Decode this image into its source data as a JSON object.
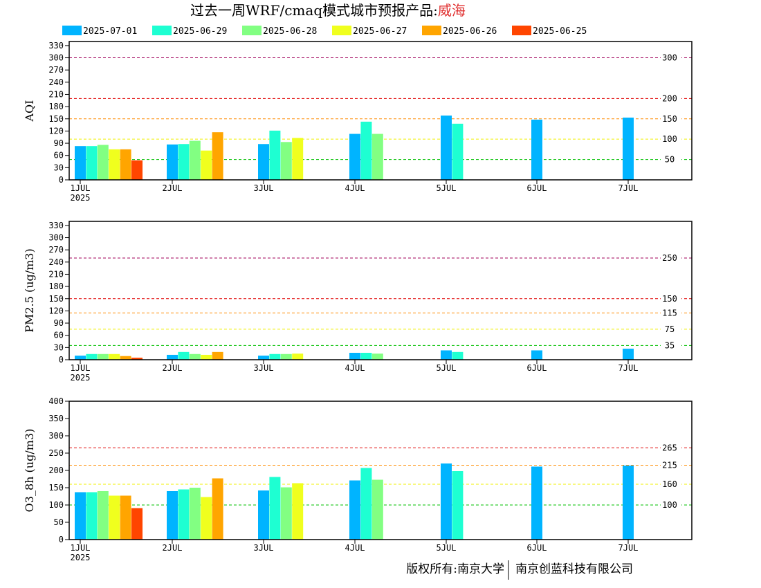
{
  "title": {
    "main": "过去一周WRF/cmaq模式城市预报产品:",
    "city": "威海",
    "city_color": "#e03030"
  },
  "legend": [
    {
      "label": "2025-07-01",
      "color": "#00b4ff"
    },
    {
      "label": "2025-06-29",
      "color": "#1effd2"
    },
    {
      "label": "2025-06-28",
      "color": "#82ff82"
    },
    {
      "label": "2025-06-27",
      "color": "#f0ff1e"
    },
    {
      "label": "2025-06-26",
      "color": "#ffa500"
    },
    {
      "label": "2025-06-25",
      "color": "#ff4500"
    }
  ],
  "footer": {
    "left": "版权所有:南京大学",
    "right": "南京创蓝科技有限公司"
  },
  "chart_data": [
    {
      "type": "bar",
      "ylabel": "AQI",
      "ylim": [
        0,
        340
      ],
      "yticks": [
        0,
        30,
        60,
        90,
        120,
        150,
        180,
        210,
        240,
        270,
        300,
        330
      ],
      "x_ticks": [
        "1JUL",
        "2JUL",
        "3JUL",
        "4JUL",
        "5JUL",
        "6JUL",
        "7JUL"
      ],
      "x_year": "2025",
      "thresholds": [
        {
          "value": 50,
          "label": "50",
          "color": "#00c000"
        },
        {
          "value": 100,
          "label": "100",
          "color": "#f0f000"
        },
        {
          "value": 150,
          "label": "150",
          "color": "#ff8c00"
        },
        {
          "value": 200,
          "label": "200",
          "color": "#e00000"
        },
        {
          "value": 300,
          "label": "300",
          "color": "#a0005a"
        }
      ],
      "days": [
        {
          "day": "1JUL",
          "values": [
            83,
            83,
            86,
            75,
            75,
            48
          ]
        },
        {
          "day": "2JUL",
          "values": [
            87,
            88,
            96,
            72,
            117,
            null
          ]
        },
        {
          "day": "3JUL",
          "values": [
            88,
            121,
            93,
            103,
            null,
            null
          ]
        },
        {
          "day": "4JUL",
          "values": [
            113,
            143,
            113,
            null,
            null,
            null
          ]
        },
        {
          "day": "5JUL",
          "values": [
            158,
            138,
            null,
            null,
            null,
            null
          ]
        },
        {
          "day": "6JUL",
          "values": [
            148,
            null,
            null,
            null,
            null,
            null
          ]
        },
        {
          "day": "7JUL",
          "values": [
            153,
            null,
            null,
            null,
            null,
            null
          ]
        }
      ]
    },
    {
      "type": "bar",
      "ylabel": "PM2.5 (ug/m3)",
      "ylim": [
        0,
        340
      ],
      "yticks": [
        0,
        30,
        60,
        90,
        120,
        150,
        180,
        210,
        240,
        270,
        300,
        330
      ],
      "x_ticks": [
        "1JUL",
        "2JUL",
        "3JUL",
        "4JUL",
        "5JUL",
        "6JUL",
        "7JUL"
      ],
      "x_year": "2025",
      "thresholds": [
        {
          "value": 35,
          "label": "35",
          "color": "#00c000"
        },
        {
          "value": 75,
          "label": "75",
          "color": "#f0f000"
        },
        {
          "value": 115,
          "label": "115",
          "color": "#ff8c00"
        },
        {
          "value": 150,
          "label": "150",
          "color": "#e00000"
        },
        {
          "value": 250,
          "label": "250",
          "color": "#a0005a"
        }
      ],
      "days": [
        {
          "day": "1JUL",
          "values": [
            10,
            14,
            14,
            14,
            9,
            5
          ]
        },
        {
          "day": "2JUL",
          "values": [
            12,
            19,
            14,
            12,
            19,
            null
          ]
        },
        {
          "day": "3JUL",
          "values": [
            10,
            14,
            14,
            15,
            null,
            null
          ]
        },
        {
          "day": "4JUL",
          "values": [
            17,
            17,
            15,
            null,
            null,
            null
          ]
        },
        {
          "day": "5JUL",
          "values": [
            23,
            19,
            null,
            null,
            null,
            null
          ]
        },
        {
          "day": "6JUL",
          "values": [
            23,
            null,
            null,
            null,
            null,
            null
          ]
        },
        {
          "day": "7JUL",
          "values": [
            27,
            null,
            null,
            null,
            null,
            null
          ]
        }
      ]
    },
    {
      "type": "bar",
      "ylabel": "O3_8h (ug/m3)",
      "ylim": [
        0,
        400
      ],
      "yticks": [
        0,
        50,
        100,
        150,
        200,
        250,
        300,
        350,
        400
      ],
      "x_ticks": [
        "1JUL",
        "2JUL",
        "3JUL",
        "4JUL",
        "5JUL",
        "6JUL",
        "7JUL"
      ],
      "x_year": "2025",
      "thresholds": [
        {
          "value": 100,
          "label": "100",
          "color": "#00c000"
        },
        {
          "value": 160,
          "label": "160",
          "color": "#f0f000"
        },
        {
          "value": 215,
          "label": "215",
          "color": "#ff8c00"
        },
        {
          "value": 265,
          "label": "265",
          "color": "#e00000"
        }
      ],
      "days": [
        {
          "day": "1JUL",
          "values": [
            137,
            137,
            140,
            127,
            127,
            91
          ]
        },
        {
          "day": "2JUL",
          "values": [
            140,
            145,
            150,
            123,
            177,
            null
          ]
        },
        {
          "day": "3JUL",
          "values": [
            142,
            181,
            151,
            163,
            null,
            null
          ]
        },
        {
          "day": "4JUL",
          "values": [
            171,
            207,
            173,
            null,
            null,
            null
          ]
        },
        {
          "day": "5JUL",
          "values": [
            220,
            198,
            null,
            null,
            null,
            null
          ]
        },
        {
          "day": "6JUL",
          "values": [
            211,
            null,
            null,
            null,
            null,
            null
          ]
        },
        {
          "day": "7JUL",
          "values": [
            214,
            null,
            null,
            null,
            null,
            null
          ]
        }
      ]
    }
  ]
}
